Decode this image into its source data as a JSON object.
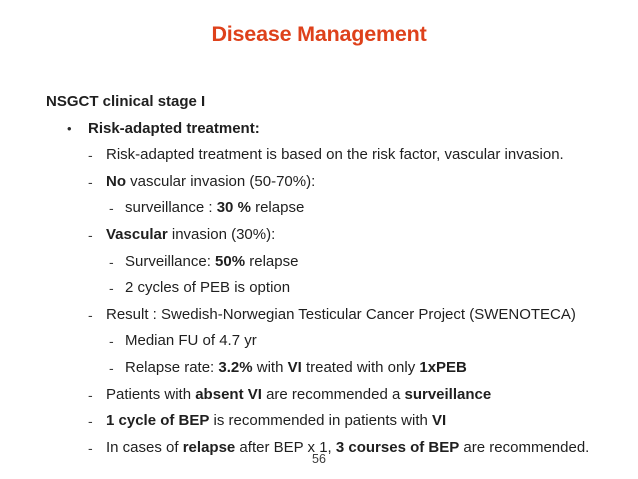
{
  "slide": {
    "title": "Disease Management",
    "title_color": "#de411b",
    "page_number": "56"
  },
  "content": {
    "lines": [
      {
        "level": 0,
        "marker": "",
        "segments": [
          {
            "text": "NSGCT clinical stage I",
            "bold": true
          }
        ]
      },
      {
        "level": 1,
        "marker": "•",
        "segments": [
          {
            "text": "Risk-adapted treatment:",
            "bold": true
          }
        ]
      },
      {
        "level": 2,
        "marker": "-",
        "segments": [
          {
            "text": "Risk-adapted treatment is based on the risk factor, vascular invasion.",
            "bold": false
          }
        ]
      },
      {
        "level": 2,
        "marker": "-",
        "segments": [
          {
            "text": "No",
            "bold": true
          },
          {
            "text": " vascular invasion (50-70%):",
            "bold": false
          }
        ]
      },
      {
        "level": 3,
        "marker": "-",
        "segments": [
          {
            "text": "surveillance : ",
            "bold": false
          },
          {
            "text": "30 %",
            "bold": true
          },
          {
            "text": " relapse",
            "bold": false
          }
        ]
      },
      {
        "level": 2,
        "marker": "-",
        "segments": [
          {
            "text": "Vascular",
            "bold": true
          },
          {
            "text": " invasion (30%):",
            "bold": false
          }
        ]
      },
      {
        "level": 3,
        "marker": "-",
        "segments": [
          {
            "text": "Surveillance: ",
            "bold": false
          },
          {
            "text": "50%",
            "bold": true
          },
          {
            "text": " relapse",
            "bold": false
          }
        ]
      },
      {
        "level": 3,
        "marker": "-",
        "segments": [
          {
            "text": "2 cycles of PEB is option",
            "bold": false
          }
        ]
      },
      {
        "level": 2,
        "marker": "-",
        "segments": [
          {
            "text": "Result : Swedish-Norwegian Testicular Cancer Project (SWENOTECA)",
            "bold": false
          }
        ]
      },
      {
        "level": 3,
        "marker": "-",
        "segments": [
          {
            "text": "Median FU of 4.7 yr",
            "bold": false
          }
        ]
      },
      {
        "level": 3,
        "marker": "-",
        "segments": [
          {
            "text": "Relapse rate: ",
            "bold": false
          },
          {
            "text": "3.2%",
            "bold": true
          },
          {
            "text": " with ",
            "bold": false
          },
          {
            "text": "VI",
            "bold": true
          },
          {
            "text": " treated with only ",
            "bold": false
          },
          {
            "text": "1xPEB",
            "bold": true
          }
        ]
      },
      {
        "level": 2,
        "marker": "-",
        "segments": [
          {
            "text": "Patients with ",
            "bold": false
          },
          {
            "text": "absent VI",
            "bold": true
          },
          {
            "text": " are recommended a ",
            "bold": false
          },
          {
            "text": "surveillance",
            "bold": true
          }
        ]
      },
      {
        "level": 2,
        "marker": "-",
        "segments": [
          {
            "text": "1 cycle of BEP",
            "bold": true
          },
          {
            "text": " is recommended in patients with ",
            "bold": false
          },
          {
            "text": "VI",
            "bold": true
          }
        ]
      },
      {
        "level": 2,
        "marker": "-",
        "segments": [
          {
            "text": "In cases of ",
            "bold": false
          },
          {
            "text": "relapse",
            "bold": true
          },
          {
            "text": " after BEP x 1, ",
            "bold": false
          },
          {
            "text": "3 courses of BEP",
            "bold": true
          },
          {
            "text": " are recommended.",
            "bold": false
          }
        ]
      }
    ]
  }
}
